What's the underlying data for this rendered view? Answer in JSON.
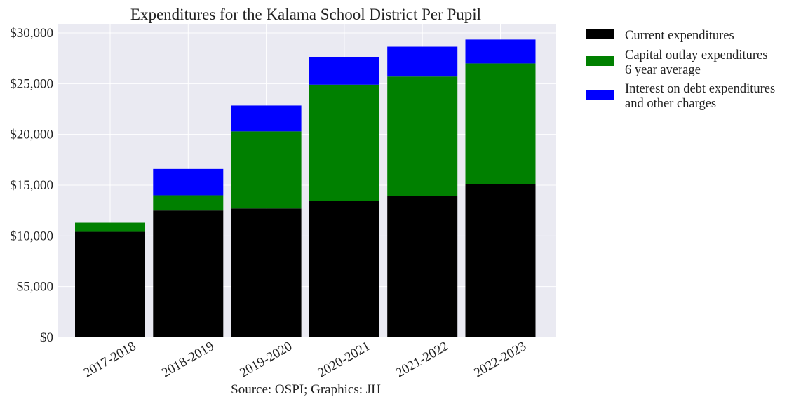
{
  "chart_data": {
    "type": "bar",
    "stacked": true,
    "title": "Expenditures for the Kalama School District Per Pupil",
    "source": "Source: OSPI; Graphics: JH",
    "categories": [
      "2017-2018",
      "2018-2019",
      "2019-2020",
      "2020-2021",
      "2021-2022",
      "2022-2023"
    ],
    "series": [
      {
        "name": "Current expenditures",
        "color": "#000000",
        "values": [
          10400,
          12500,
          12700,
          13450,
          13950,
          15100
        ]
      },
      {
        "name": "Capital outlay expenditures\n6 year average",
        "color": "#008000",
        "values": [
          900,
          1500,
          7600,
          11450,
          11750,
          11900
        ]
      },
      {
        "name": "Interest on debt expenditures\nand other charges",
        "color": "#0000ff",
        "values": [
          0,
          2600,
          2550,
          2750,
          2950,
          2350
        ]
      }
    ],
    "ylim": [
      0,
      30000
    ],
    "yticks": [
      0,
      5000,
      10000,
      15000,
      20000,
      25000,
      30000
    ],
    "ytick_labels": [
      "$0",
      "$5,000",
      "$10,000",
      "$15,000",
      "$20,000",
      "$25,000",
      "$30,000"
    ],
    "xlabel": "",
    "ylabel": "",
    "grid": true,
    "legend_position": "outside-right-top",
    "background_color": "#eaeaf2"
  }
}
